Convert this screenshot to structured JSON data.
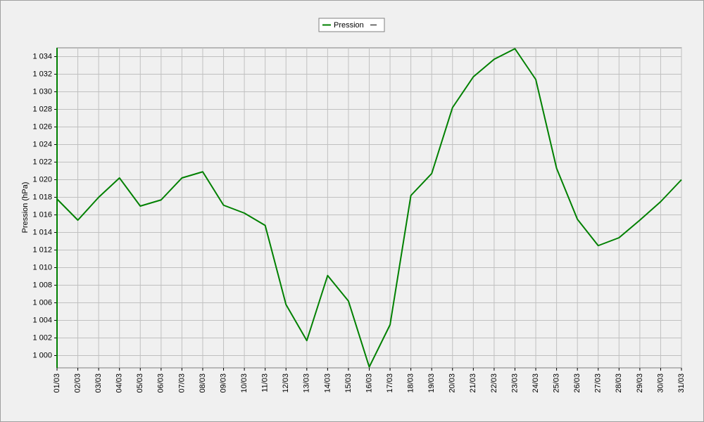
{
  "chart_data": {
    "type": "line",
    "y_label": "Pression (hPa)",
    "categories": [
      "01/03",
      "02/03",
      "03/03",
      "04/03",
      "05/03",
      "06/03",
      "07/03",
      "08/03",
      "09/03",
      "10/03",
      "11/03",
      "12/03",
      "13/03",
      "14/03",
      "15/03",
      "16/03",
      "17/03",
      "18/03",
      "19/03",
      "20/03",
      "21/03",
      "22/03",
      "23/03",
      "24/03",
      "25/03",
      "26/03",
      "27/03",
      "28/03",
      "29/03",
      "30/03",
      "31/03"
    ],
    "series": [
      {
        "name": "Pression",
        "color": "#008000",
        "values": [
          1017.8,
          1015.4,
          1018.0,
          1020.2,
          1017.0,
          1017.7,
          1020.2,
          1020.9,
          1017.1,
          1016.2,
          1014.8,
          1005.8,
          1001.7,
          1009.1,
          1006.2,
          998.7,
          1003.5,
          1018.2,
          1020.7,
          1028.2,
          1031.7,
          1033.7,
          1034.9,
          1031.4,
          1021.3,
          1015.5,
          1012.5,
          1013.4,
          1015.4,
          1017.5,
          1020.0
        ]
      }
    ],
    "ylim": [
      998.6,
      1035
    ],
    "yticks": [
      {
        "value": 1000,
        "label": "1 000"
      },
      {
        "value": 1002,
        "label": "1 002"
      },
      {
        "value": 1004,
        "label": "1 004"
      },
      {
        "value": 1006,
        "label": "1 006"
      },
      {
        "value": 1008,
        "label": "1 008"
      },
      {
        "value": 1010,
        "label": "1 010"
      },
      {
        "value": 1012,
        "label": "1 012"
      },
      {
        "value": 1014,
        "label": "1 014"
      },
      {
        "value": 1016,
        "label": "1 016"
      },
      {
        "value": 1018,
        "label": "1 018"
      },
      {
        "value": 1020,
        "label": "1 020"
      },
      {
        "value": 1022,
        "label": "1 022"
      },
      {
        "value": 1024,
        "label": "1 024"
      },
      {
        "value": 1026,
        "label": "1 026"
      },
      {
        "value": 1028,
        "label": "1 028"
      },
      {
        "value": 1030,
        "label": "1 030"
      },
      {
        "value": 1032,
        "label": "1 032"
      },
      {
        "value": 1034,
        "label": "1 034"
      }
    ],
    "grid": true
  }
}
